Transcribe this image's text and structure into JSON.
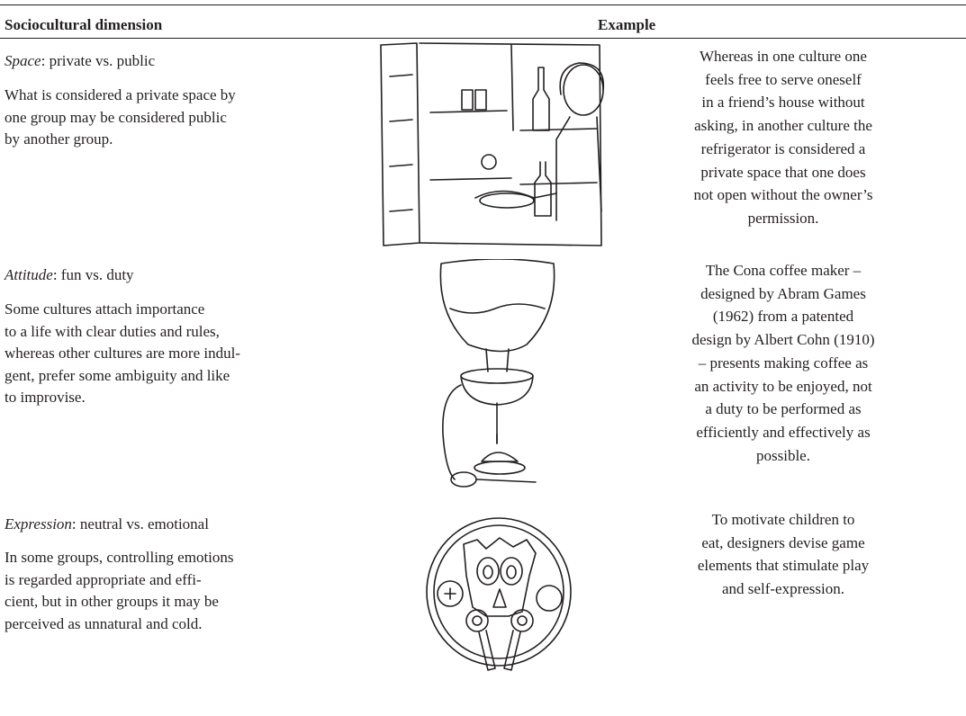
{
  "header": {
    "dimension": "Sociocultural dimension",
    "example": "Example"
  },
  "rows": [
    {
      "name": "Space",
      "poles": ": private vs. public",
      "description": [
        "What is considered a private space by",
        "one group may be considered public",
        "by another group."
      ],
      "example": [
        "Whereas in one culture one",
        "feels free to serve oneself",
        "in a friend’s house without",
        "asking, in another culture the",
        "refrigerator is considered a",
        "private space that one does",
        "not open without the owner’s",
        "permission."
      ]
    },
    {
      "name": "Attitude",
      "poles": ": fun vs. duty",
      "description": [
        "Some cultures attach importance",
        "to a life with clear duties and rules,",
        "whereas other cultures are more indul-",
        "gent, prefer some ambiguity and like",
        "to improvise."
      ],
      "example": [
        "The Cona coffee maker –",
        "designed by Abram Games",
        "(1962) from a patented",
        "design by Albert Cohn (1910)",
        "– presents making coffee as",
        "an activity to be enjoyed, not",
        "a duty to be performed as",
        "efficiently and effectively as",
        "possible."
      ]
    },
    {
      "name": "Expression",
      "poles": ": neutral vs. emotional",
      "description": [
        "In some groups, controlling emotions",
        "is regarded appropriate and effi-",
        "cient, but in other groups it may be",
        "perceived as unnatural and cold."
      ],
      "example": [
        "To motivate children to",
        "eat, designers devise game",
        "elements that stimulate play",
        "and self-expression."
      ]
    }
  ]
}
